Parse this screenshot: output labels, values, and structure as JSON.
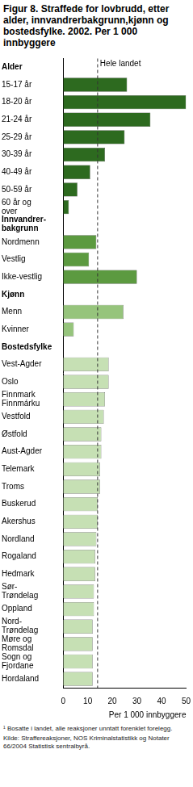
{
  "chart_data": {
    "type": "bar",
    "orientation": "horizontal",
    "title": "Figur 8. Straffede for lovbrudd, etter alder, innvandrerbakgrunn,kjønn og bostedsfylke. 2002. Per 1 000 innbyggere",
    "xlabel": "Per 1 000 innbyggere",
    "xlim": [
      0,
      50
    ],
    "xticks": [
      0,
      10,
      20,
      30,
      40,
      50
    ],
    "grid": false,
    "legend": "none",
    "reference": {
      "label": "Hele landet",
      "value": 14
    },
    "groups": [
      {
        "label": "Alder",
        "color": "#2d6a1f",
        "categories": [
          "15-17 år",
          "18-20 år",
          "21-24 år",
          "25-29 år",
          "30-39 år",
          "40-49 år",
          "50-59 år",
          "60 år og\nover"
        ],
        "values": [
          26,
          50,
          35.5,
          25,
          17,
          11,
          5.8,
          2.3
        ]
      },
      {
        "label": "Innvandrer-\nbakgrunn",
        "color": "#5c9a40",
        "categories": [
          "Nordmenn",
          "Vestlig",
          "Ikke-vestlig"
        ],
        "values": [
          13.5,
          10.5,
          30
        ]
      },
      {
        "label": "Kjønn",
        "color": "#96c47c",
        "categories": [
          "Menn",
          "Kvinner"
        ],
        "values": [
          24.5,
          4.3
        ]
      },
      {
        "label": "Bostedsfylke",
        "color": "#c6e0b4",
        "categories": [
          "Vest-Agder",
          "Oslo",
          "Finnmark\nFinnmárku",
          "Vestfold",
          "Østfold",
          "Aust-Agder",
          "Telemark",
          "Troms",
          "Buskerud",
          "Akershus",
          "Nordland",
          "Rogaland",
          "Hedmark",
          "Sør-\nTrøndelag",
          "Oppland",
          "Nord-\nTrøndelag",
          "Møre og\nRomsdal",
          "Sogn og\nFjordane",
          "Hordaland"
        ],
        "values": [
          18.5,
          18.5,
          17,
          16.5,
          15.5,
          15.5,
          15,
          15,
          14,
          14,
          13.5,
          13,
          13,
          12.5,
          12.5,
          12,
          12,
          12,
          12
        ]
      }
    ],
    "footnote": "¹ Bosatte i landet, alle reaksjoner unntatt forenklet forelegg.",
    "source": "Kilde: Straffereaksjoner, NOS Kriminalstatistikk og Notater 66/2004 Statistisk sentralbyrå."
  }
}
